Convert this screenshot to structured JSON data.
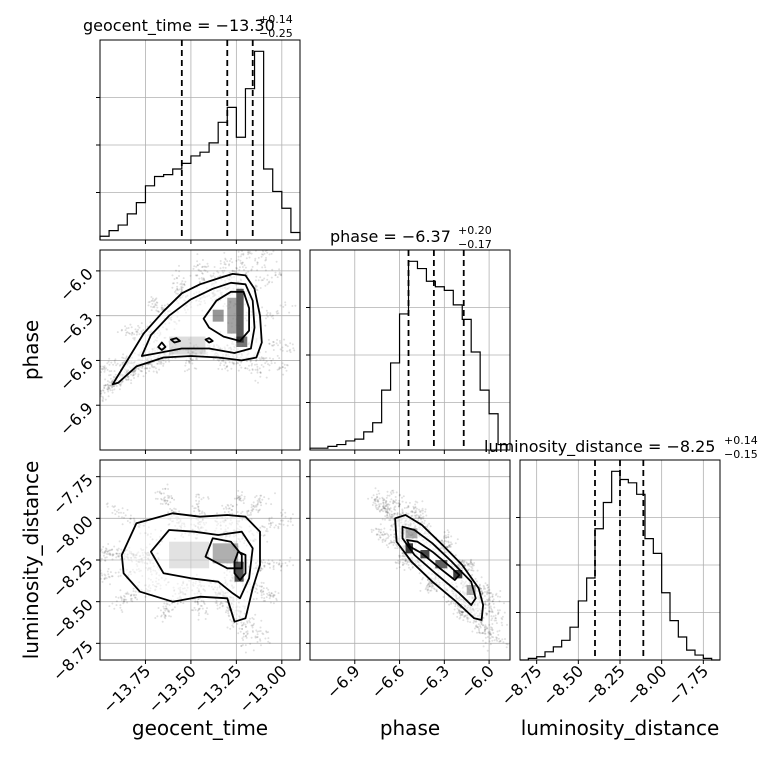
{
  "chart_data": {
    "type": "corner",
    "colors": {
      "line": "#000000",
      "grid": "#b0b0b0",
      "density": "#000000",
      "points": "#000000"
    },
    "parameters": [
      "geocent_time",
      "phase",
      "luminosity_distance"
    ],
    "axis_labels": {
      "geocent_time": "geocent_time",
      "phase": "phase",
      "luminosity_distance": "luminosity_distance"
    },
    "ranges": {
      "geocent_time": [
        -14.0,
        -12.9
      ],
      "phase": [
        -7.2,
        -5.86
      ],
      "luminosity_distance": [
        -8.85,
        -7.65
      ]
    },
    "ticks": {
      "geocent_time": [
        {
          "v": -13.75,
          "label": "−13.75"
        },
        {
          "v": -13.5,
          "label": "−13.50"
        },
        {
          "v": -13.25,
          "label": "−13.25"
        },
        {
          "v": -13.0,
          "label": "−13.00"
        }
      ],
      "phase": [
        {
          "v": -6.9,
          "label": "−6.9"
        },
        {
          "v": -6.6,
          "label": "−6.6"
        },
        {
          "v": -6.3,
          "label": "−6.3"
        },
        {
          "v": -6.0,
          "label": "−6.0"
        }
      ],
      "luminosity_distance": [
        {
          "v": -8.75,
          "label": "−8.75"
        },
        {
          "v": -8.5,
          "label": "−8.50"
        },
        {
          "v": -8.25,
          "label": "−8.25"
        },
        {
          "v": -8.0,
          "label": "−8.00"
        },
        {
          "v": -7.75,
          "label": "−7.75"
        }
      ]
    },
    "titles": {
      "geocent_time": {
        "main": "geocent_time = −13.30",
        "plus": "+0.14",
        "minus": "−0.25"
      },
      "phase": {
        "main": "phase = −6.37",
        "plus": "+0.20",
        "minus": "−0.17"
      },
      "luminosity_distance": {
        "main": "luminosity_distance = −8.25",
        "plus": "+0.14",
        "minus": "−0.15"
      }
    },
    "quantiles": {
      "geocent_time": [
        -13.55,
        -13.3,
        -13.16
      ],
      "phase": [
        -6.54,
        -6.37,
        -6.17
      ],
      "luminosity_distance": [
        -8.4,
        -8.25,
        -8.11
      ]
    },
    "histograms": {
      "geocent_time": {
        "edges": [
          -14.0,
          -13.95,
          -13.9,
          -13.85,
          -13.8,
          -13.75,
          -13.7,
          -13.65,
          -13.6,
          -13.55,
          -13.5,
          -13.45,
          -13.4,
          -13.35,
          -13.3,
          -13.25,
          -13.2,
          -13.15,
          -13.1,
          -13.05,
          -13.0,
          -12.95,
          -12.9
        ],
        "counts": [
          2,
          5,
          8,
          14,
          20,
          29,
          34,
          35,
          38,
          41,
          45,
          47,
          52,
          63,
          71,
          55,
          81,
          101,
          38,
          26,
          17,
          4
        ]
      },
      "phase": {
        "edges": [
          -7.2,
          -7.14,
          -7.08,
          -7.02,
          -6.96,
          -6.9,
          -6.84,
          -6.78,
          -6.72,
          -6.66,
          -6.6,
          -6.54,
          -6.48,
          -6.42,
          -6.36,
          -6.3,
          -6.24,
          -6.18,
          -6.12,
          -6.06,
          -6.0,
          -5.94,
          -5.88
        ],
        "counts": [
          1,
          1,
          2,
          3,
          5,
          6,
          10,
          15,
          33,
          48,
          75,
          104,
          100,
          93,
          90,
          88,
          80,
          72,
          54,
          33,
          20,
          3
        ]
      },
      "luminosity_distance": {
        "edges": [
          -8.85,
          -8.8,
          -8.75,
          -8.7,
          -8.65,
          -8.6,
          -8.55,
          -8.5,
          -8.45,
          -8.4,
          -8.35,
          -8.3,
          -8.25,
          -8.2,
          -8.15,
          -8.1,
          -8.05,
          -8.0,
          -7.95,
          -7.9,
          -7.85,
          -7.8,
          -7.75,
          -7.7,
          -7.65
        ],
        "counts": [
          0,
          1,
          2,
          5,
          8,
          12,
          20,
          36,
          50,
          80,
          96,
          115,
          110,
          108,
          101,
          74,
          65,
          41,
          24,
          14,
          6,
          3,
          1,
          0
        ]
      }
    },
    "panels_2d": [
      {
        "x": "geocent_time",
        "y": "phase",
        "contours": [
          [
            [
              -13.93,
              -6.76
            ],
            [
              -13.85,
              -6.6
            ],
            [
              -13.76,
              -6.42
            ],
            [
              -13.65,
              -6.27
            ],
            [
              -13.55,
              -6.15
            ],
            [
              -13.45,
              -6.09
            ],
            [
              -13.35,
              -6.05
            ],
            [
              -13.27,
              -6.02
            ],
            [
              -13.2,
              -6.03
            ],
            [
              -13.15,
              -6.12
            ],
            [
              -13.12,
              -6.3
            ],
            [
              -13.11,
              -6.48
            ],
            [
              -13.14,
              -6.58
            ],
            [
              -13.22,
              -6.6
            ],
            [
              -13.35,
              -6.58
            ],
            [
              -13.5,
              -6.57
            ],
            [
              -13.65,
              -6.58
            ],
            [
              -13.8,
              -6.64
            ],
            [
              -13.9,
              -6.75
            ],
            [
              -13.93,
              -6.76
            ]
          ],
          [
            [
              -13.77,
              -6.57
            ],
            [
              -13.72,
              -6.43
            ],
            [
              -13.62,
              -6.3
            ],
            [
              -13.5,
              -6.19
            ],
            [
              -13.38,
              -6.12
            ],
            [
              -13.28,
              -6.08
            ],
            [
              -13.2,
              -6.09
            ],
            [
              -13.16,
              -6.2
            ],
            [
              -13.15,
              -6.38
            ],
            [
              -13.17,
              -6.52
            ],
            [
              -13.26,
              -6.55
            ],
            [
              -13.4,
              -6.52
            ],
            [
              -13.55,
              -6.52
            ],
            [
              -13.68,
              -6.55
            ],
            [
              -13.77,
              -6.57
            ]
          ],
          [
            [
              -13.43,
              -6.32
            ],
            [
              -13.36,
              -6.2
            ],
            [
              -13.28,
              -6.14
            ],
            [
              -13.21,
              -6.14
            ],
            [
              -13.18,
              -6.25
            ],
            [
              -13.18,
              -6.4
            ],
            [
              -13.23,
              -6.47
            ],
            [
              -13.32,
              -6.44
            ],
            [
              -13.4,
              -6.38
            ],
            [
              -13.43,
              -6.32
            ]
          ],
          [
            [
              -13.68,
              -6.51
            ],
            [
              -13.66,
              -6.48
            ],
            [
              -13.64,
              -6.51
            ],
            [
              -13.66,
              -6.53
            ],
            [
              -13.68,
              -6.51
            ]
          ],
          [
            [
              -13.61,
              -6.46
            ],
            [
              -13.58,
              -6.45
            ],
            [
              -13.56,
              -6.47
            ],
            [
              -13.59,
              -6.48
            ],
            [
              -13.61,
              -6.46
            ]
          ],
          [
            [
              -13.42,
              -6.46
            ],
            [
              -13.4,
              -6.45
            ],
            [
              -13.38,
              -6.47
            ],
            [
              -13.4,
              -6.48
            ],
            [
              -13.42,
              -6.46
            ]
          ]
        ],
        "density_blocks": [
          {
            "x": -13.25,
            "y": -6.12,
            "w": 0.04,
            "h": 0.36,
            "shade": 0.7
          },
          {
            "x": -13.3,
            "y": -6.18,
            "w": 0.05,
            "h": 0.24,
            "shade": 0.35
          },
          {
            "x": -13.38,
            "y": -6.26,
            "w": 0.06,
            "h": 0.08,
            "shade": 0.4
          },
          {
            "x": -13.25,
            "y": -6.44,
            "w": 0.06,
            "h": 0.07,
            "shade": 0.55
          },
          {
            "x": -13.62,
            "y": -6.44,
            "w": 0.2,
            "h": 0.12,
            "shade": 0.12
          }
        ]
      },
      {
        "x": "geocent_time",
        "y": "luminosity_distance",
        "contours": [
          [
            [
              -13.88,
              -8.22
            ],
            [
              -13.8,
              -8.03
            ],
            [
              -13.6,
              -7.97
            ],
            [
              -13.45,
              -7.99
            ],
            [
              -13.3,
              -7.98
            ],
            [
              -13.2,
              -7.99
            ],
            [
              -13.12,
              -8.08
            ],
            [
              -13.12,
              -8.28
            ],
            [
              -13.16,
              -8.42
            ],
            [
              -13.2,
              -8.6
            ],
            [
              -13.26,
              -8.62
            ],
            [
              -13.3,
              -8.48
            ],
            [
              -13.45,
              -8.47
            ],
            [
              -13.6,
              -8.5
            ],
            [
              -13.78,
              -8.44
            ],
            [
              -13.87,
              -8.33
            ],
            [
              -13.88,
              -8.22
            ]
          ],
          [
            [
              -13.72,
              -8.2
            ],
            [
              -13.62,
              -8.07
            ],
            [
              -13.48,
              -8.08
            ],
            [
              -13.35,
              -8.1
            ],
            [
              -13.22,
              -8.08
            ],
            [
              -13.16,
              -8.18
            ],
            [
              -13.18,
              -8.36
            ],
            [
              -13.23,
              -8.48
            ],
            [
              -13.27,
              -8.45
            ],
            [
              -13.35,
              -8.38
            ],
            [
              -13.5,
              -8.36
            ],
            [
              -13.65,
              -8.33
            ],
            [
              -13.72,
              -8.2
            ]
          ],
          [
            [
              -13.42,
              -8.23
            ],
            [
              -13.38,
              -8.12
            ],
            [
              -13.28,
              -8.14
            ],
            [
              -13.22,
              -8.22
            ],
            [
              -13.22,
              -8.3
            ],
            [
              -13.3,
              -8.3
            ],
            [
              -13.42,
              -8.23
            ]
          ],
          [
            [
              -13.26,
              -8.26
            ],
            [
              -13.24,
              -8.2
            ],
            [
              -13.2,
              -8.22
            ],
            [
              -13.2,
              -8.33
            ],
            [
              -13.23,
              -8.37
            ],
            [
              -13.26,
              -8.33
            ],
            [
              -13.26,
              -8.26
            ]
          ]
        ],
        "density_blocks": [
          {
            "x": -13.26,
            "y": -8.26,
            "w": 0.05,
            "h": 0.12,
            "shade": 0.75
          },
          {
            "x": -13.38,
            "y": -8.15,
            "w": 0.14,
            "h": 0.12,
            "shade": 0.3
          },
          {
            "x": -13.62,
            "y": -8.14,
            "w": 0.22,
            "h": 0.16,
            "shade": 0.1
          }
        ]
      },
      {
        "x": "phase",
        "y": "luminosity_distance",
        "contours": [
          [
            [
              -6.63,
              -8.0
            ],
            [
              -6.56,
              -7.98
            ],
            [
              -6.45,
              -8.04
            ],
            [
              -6.3,
              -8.17
            ],
            [
              -6.18,
              -8.28
            ],
            [
              -6.07,
              -8.42
            ],
            [
              -6.04,
              -8.52
            ],
            [
              -6.05,
              -8.61
            ],
            [
              -6.1,
              -8.6
            ],
            [
              -6.22,
              -8.5
            ],
            [
              -6.38,
              -8.38
            ],
            [
              -6.52,
              -8.26
            ],
            [
              -6.62,
              -8.14
            ],
            [
              -6.63,
              -8.0
            ]
          ],
          [
            [
              -6.58,
              -8.05
            ],
            [
              -6.5,
              -8.07
            ],
            [
              -6.38,
              -8.15
            ],
            [
              -6.25,
              -8.26
            ],
            [
              -6.12,
              -8.38
            ],
            [
              -6.09,
              -8.48
            ],
            [
              -6.12,
              -8.52
            ],
            [
              -6.2,
              -8.45
            ],
            [
              -6.36,
              -8.33
            ],
            [
              -6.5,
              -8.22
            ],
            [
              -6.58,
              -8.12
            ],
            [
              -6.58,
              -8.05
            ]
          ],
          [
            [
              -6.55,
              -8.13
            ],
            [
              -6.48,
              -8.14
            ],
            [
              -6.38,
              -8.2
            ],
            [
              -6.26,
              -8.29
            ],
            [
              -6.2,
              -8.34
            ],
            [
              -6.23,
              -8.37
            ],
            [
              -6.33,
              -8.3
            ],
            [
              -6.45,
              -8.21
            ],
            [
              -6.53,
              -8.17
            ],
            [
              -6.55,
              -8.13
            ]
          ]
        ],
        "density_blocks": [
          {
            "x": -6.56,
            "y": -8.15,
            "w": 0.05,
            "h": 0.06,
            "shade": 0.9
          },
          {
            "x": -6.46,
            "y": -8.19,
            "w": 0.06,
            "h": 0.05,
            "shade": 0.8
          },
          {
            "x": -6.36,
            "y": -8.25,
            "w": 0.08,
            "h": 0.05,
            "shade": 0.65
          },
          {
            "x": -6.24,
            "y": -8.31,
            "w": 0.06,
            "h": 0.05,
            "shade": 0.85
          },
          {
            "x": -6.56,
            "y": -8.06,
            "w": 0.08,
            "h": 0.06,
            "shade": 0.3
          },
          {
            "x": -6.15,
            "y": -8.4,
            "w": 0.06,
            "h": 0.06,
            "shade": 0.3
          }
        ]
      }
    ],
    "grid": true
  }
}
